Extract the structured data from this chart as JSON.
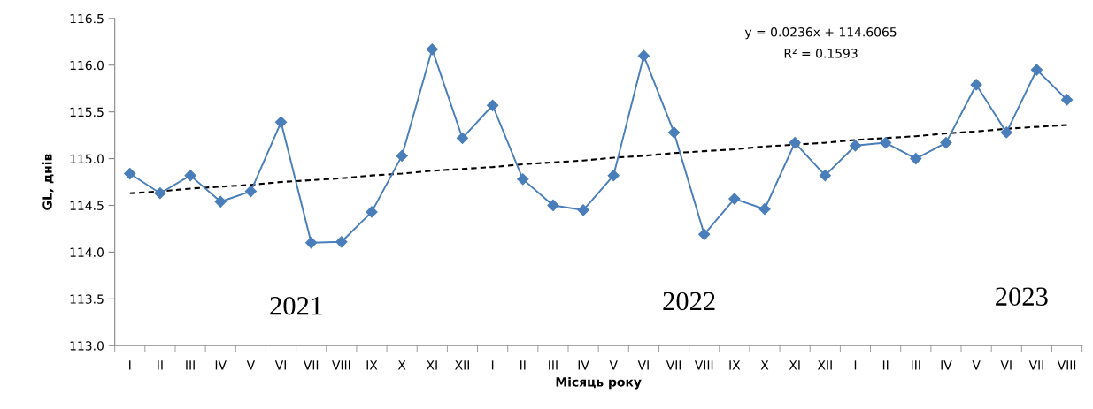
{
  "chart_data": {
    "type": "line",
    "xlabel": "Місяць року",
    "ylabel": "GL, днів",
    "categories": [
      "I",
      "II",
      "III",
      "IV",
      "V",
      "VI",
      "VII",
      "VIII",
      "IX",
      "X",
      "XI",
      "XII",
      "I",
      "II",
      "III",
      "IV",
      "V",
      "VI",
      "VII",
      "VIII",
      "IX",
      "X",
      "XI",
      "XII",
      "I",
      "II",
      "III",
      "IV",
      "V",
      "VI",
      "VII",
      "VIII"
    ],
    "series": [
      {
        "color": "#4a7ebb",
        "marker": "diamond",
        "line_style": "solid",
        "values": [
          114.84,
          114.63,
          114.82,
          114.54,
          114.65,
          115.39,
          114.1,
          114.11,
          114.43,
          115.03,
          116.17,
          115.22,
          115.57,
          114.78,
          114.5,
          114.45,
          114.82,
          116.1,
          115.28,
          114.19,
          114.57,
          114.46,
          115.17,
          114.82,
          115.14,
          115.17,
          115.0,
          115.17,
          115.79,
          115.28,
          115.95,
          115.63
        ]
      },
      {
        "color": "#000000",
        "marker": "none",
        "line_style": "dashed",
        "values": [
          114.63,
          114.65,
          114.68,
          114.7,
          114.72,
          114.75,
          114.77,
          114.79,
          114.82,
          114.84,
          114.87,
          114.89,
          114.91,
          114.94,
          114.96,
          114.98,
          115.01,
          115.03,
          115.06,
          115.08,
          115.1,
          115.13,
          115.15,
          115.17,
          115.2,
          115.22,
          115.24,
          115.27,
          115.29,
          115.32,
          115.34,
          115.36
        ]
      }
    ],
    "ylim": [
      113.0,
      116.5
    ],
    "yticks": [
      {
        "value": 113.0,
        "label": "113.0"
      },
      {
        "value": 113.5,
        "label": "113.5"
      },
      {
        "value": 114.0,
        "label": "114.0"
      },
      {
        "value": 114.5,
        "label": "114.5"
      },
      {
        "value": 115.0,
        "label": "115.0"
      },
      {
        "value": 115.5,
        "label": "115.5"
      },
      {
        "value": 116.0,
        "label": "116.0"
      },
      {
        "value": 116.5,
        "label": "116.5"
      }
    ],
    "grid": false,
    "legend": false,
    "annotations": [
      "y = 0.0236x + 114.6065",
      "R² = 0.1593",
      "2021",
      "2022",
      "2023"
    ]
  }
}
